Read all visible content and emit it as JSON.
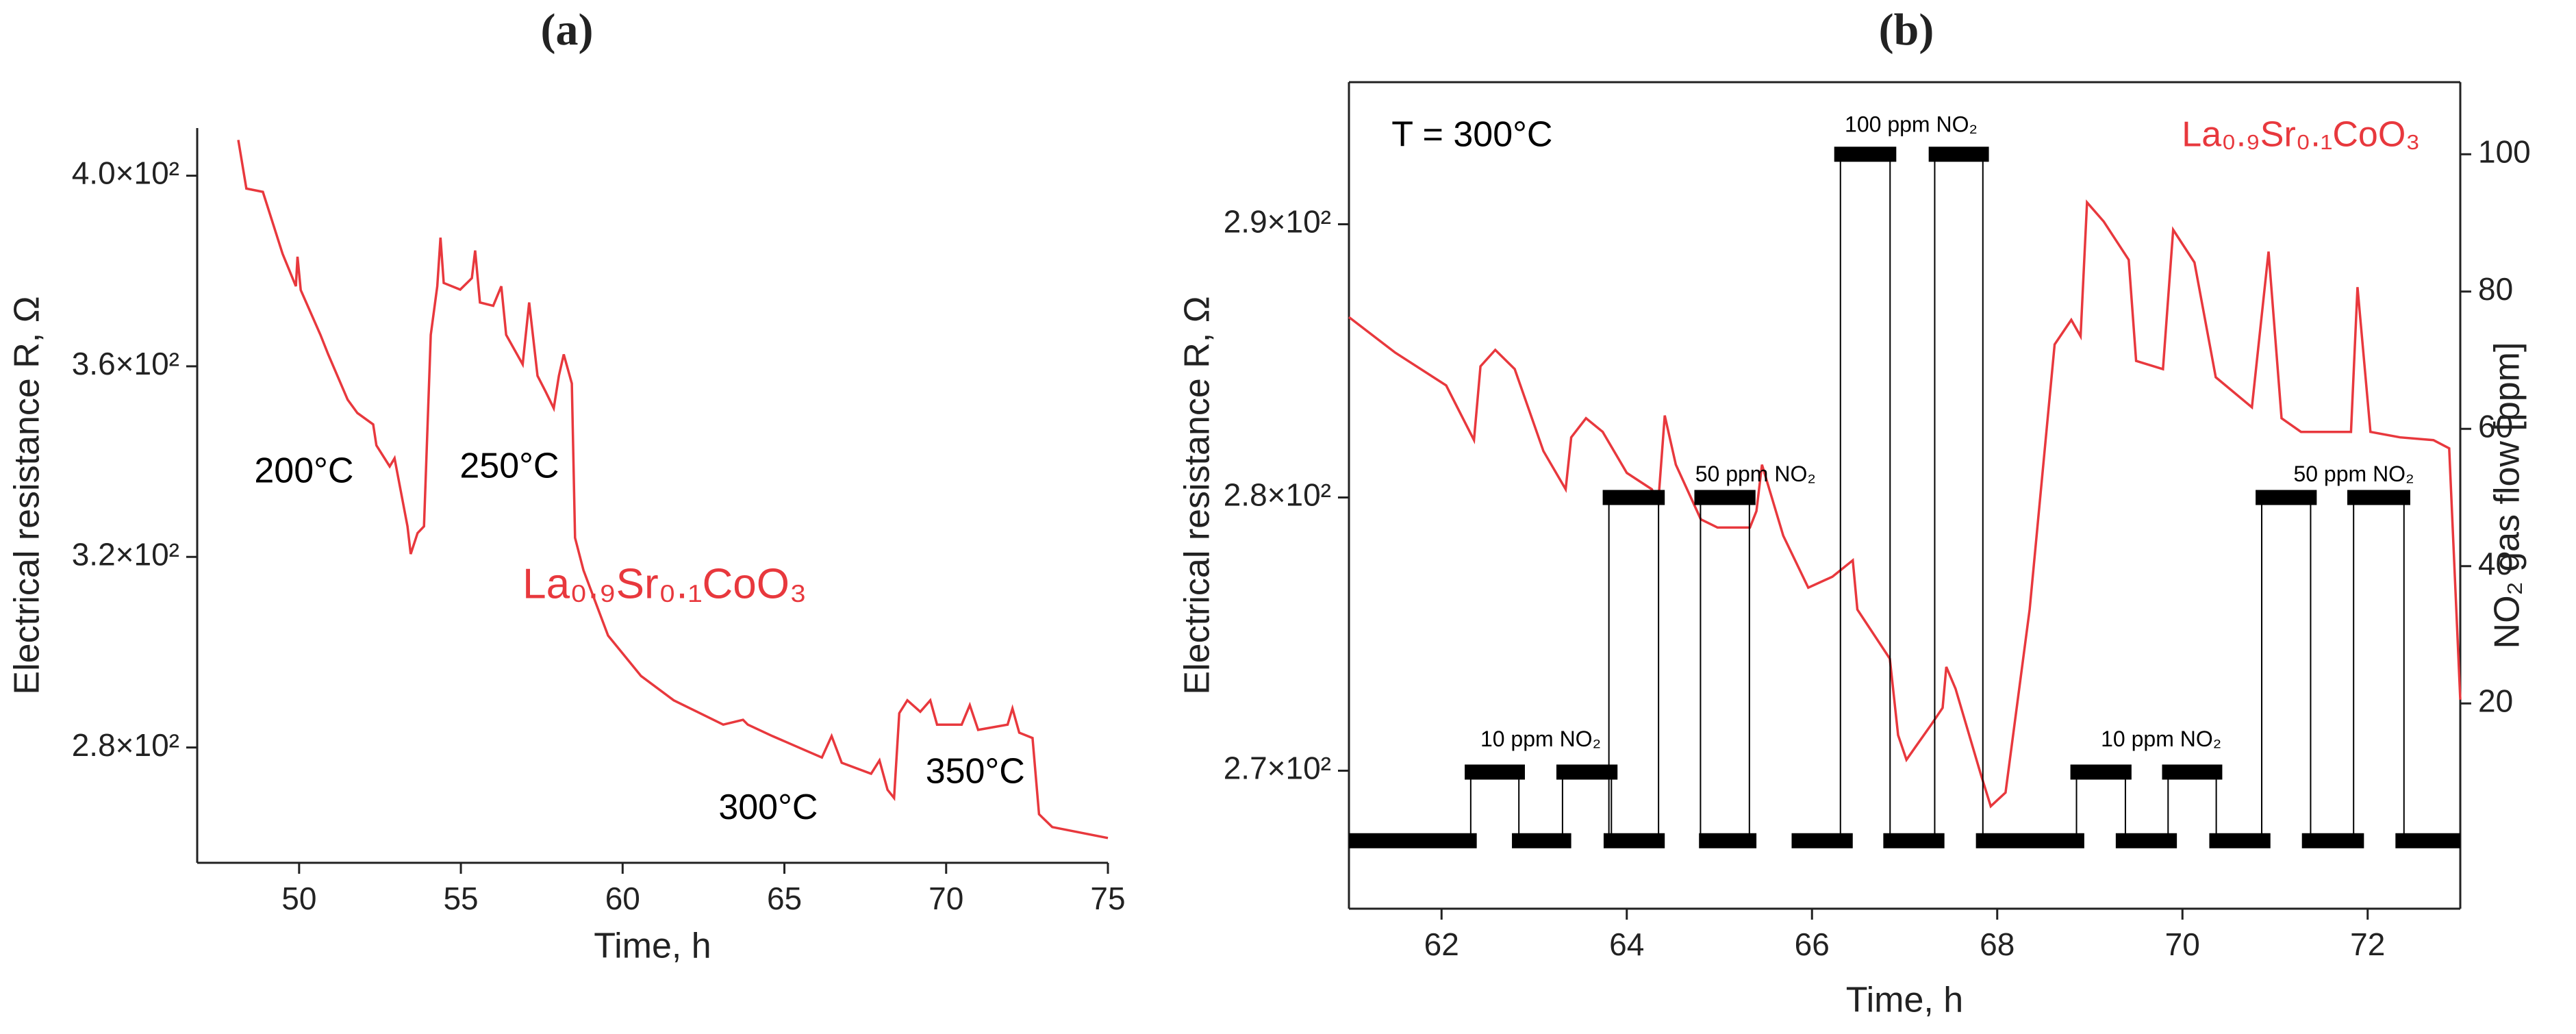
{
  "chart_data": [
    {
      "type": "line",
      "title": "(a)",
      "xlabel": "Time, h",
      "ylabel": "Electrical resistance R, Ω",
      "xlim": [
        46.85,
        75
      ],
      "ylim": [
        255.8,
        410
      ],
      "xticks": [
        50,
        55,
        60,
        65,
        70,
        75
      ],
      "yticks": [
        {
          "value": 280,
          "label": "2.8×10²"
        },
        {
          "value": 320,
          "label": "3.2×10²"
        },
        {
          "value": 360,
          "label": "3.6×10²"
        },
        {
          "value": 400,
          "label": "4.0×10²"
        }
      ],
      "series": [
        {
          "color": "#e8383d",
          "x": [
            48.12,
            48.37,
            48.88,
            49.49,
            49.9,
            49.95,
            50.05,
            50.66,
            50.9,
            51.5,
            51.8,
            52.29,
            52.39,
            52.8,
            52.95,
            53.35,
            53.45,
            53.66,
            53.86,
            54.07,
            54.27,
            54.37,
            54.47,
            54.98,
            55.34,
            55.44,
            55.59,
            56.0,
            56.25,
            56.4,
            56.91,
            57.11,
            57.37,
            57.62,
            57.87,
            58.03,
            58.18,
            58.43,
            58.53,
            58.79,
            59.55,
            60.57,
            61.58,
            63.11,
            63.72,
            63.87,
            64.63,
            65.65,
            66.16,
            66.46,
            66.77,
            67.68,
            67.94,
            68.19,
            68.39,
            68.55,
            68.8,
            69.2,
            69.51,
            69.72,
            70.48,
            70.73,
            70.99,
            71.9,
            72.05,
            72.26,
            72.67,
            72.87,
            73.28,
            75.0
          ],
          "values": [
            407.5,
            397.3,
            396.6,
            383.6,
            376.8,
            383,
            376,
            366.6,
            362.5,
            353,
            350.2,
            347.8,
            343.4,
            339,
            340.7,
            326.4,
            320.6,
            325,
            326.4,
            366.6,
            376.8,
            387,
            377.5,
            376.1,
            378.5,
            384.3,
            373.4,
            372.7,
            376.8,
            366.6,
            360.4,
            373.4,
            358,
            354.7,
            351.2,
            358,
            362.5,
            356.4,
            324,
            317.2,
            303.5,
            295,
            289.9,
            284.8,
            285.8,
            284.8,
            282.4,
            279.4,
            277.9,
            282.4,
            276.8,
            274.5,
            277.3,
            271.1,
            269.4,
            287.2,
            289.9,
            287.5,
            289.9,
            284.8,
            284.8,
            288.9,
            283.7,
            284.8,
            288.2,
            283.1,
            282,
            266,
            263.3,
            261
          ]
        }
      ],
      "annotations": [
        {
          "text": "200°C",
          "x": 50.15,
          "y": 337.6,
          "color": "#000000"
        },
        {
          "text": "250°C",
          "x": 56.5,
          "y": 338.6,
          "color": "#000000"
        },
        {
          "text": "300°C",
          "x": 64.5,
          "y": 267,
          "color": "#000000"
        },
        {
          "text": "350°C",
          "x": 70.9,
          "y": 274.5,
          "color": "#000000"
        },
        {
          "text": "La₀.₉Sr₀.₁CoO₃",
          "x": 61.3,
          "y": 313.7,
          "color": "#e8383d"
        }
      ]
    },
    {
      "type": "line",
      "title": "(b)",
      "xlabel": "Time, h",
      "ylabel": "Electrical resistance R, Ω",
      "y2label": "NO₂ gas flow [ppm]",
      "xlim": [
        61,
        73
      ],
      "ylim": [
        264.95,
        295.2
      ],
      "y2lim": [
        -9.9,
        110.5
      ],
      "xticks": [
        62,
        64,
        66,
        68,
        70,
        72
      ],
      "yticks": [
        {
          "value": 270,
          "label": "2.7×10²"
        },
        {
          "value": 280,
          "label": "2.8×10²"
        },
        {
          "value": 290,
          "label": "2.9×10²"
        }
      ],
      "y2ticks": [
        20,
        40,
        60,
        80,
        100
      ],
      "series": [
        {
          "color": "#e8383d",
          "x": [
            61.0,
            61.5,
            62.05,
            62.35,
            62.42,
            62.58,
            62.79,
            63.1,
            63.34,
            63.4,
            63.56,
            63.74,
            64.0,
            64.27,
            64.34,
            64.41,
            64.53,
            64.8,
            64.98,
            65.33,
            65.4,
            65.46,
            65.69,
            65.96,
            66.22,
            66.44,
            66.49,
            66.84,
            66.93,
            67.02,
            67.29,
            67.41,
            67.45,
            67.55,
            67.82,
            67.93,
            68.09,
            68.35,
            68.62,
            68.8,
            68.9,
            68.97,
            69.15,
            69.42,
            69.5,
            69.79,
            69.9,
            70.13,
            70.36,
            70.75,
            70.93,
            71.07,
            71.28,
            71.82,
            71.89,
            72.03,
            72.35,
            72.71,
            72.88,
            73.0
          ],
          "values": [
            286.6,
            285.3,
            284.1,
            282.1,
            284.8,
            285.4,
            284.7,
            281.7,
            280.3,
            282.2,
            282.9,
            282.4,
            280.9,
            280.3,
            279.8,
            283.0,
            281.2,
            279.2,
            278.9,
            278.9,
            279.5,
            281.2,
            278.6,
            276.7,
            277.1,
            277.7,
            275.9,
            274.1,
            271.3,
            270.4,
            271.7,
            272.3,
            273.8,
            273.0,
            269.9,
            268.7,
            269.2,
            275.9,
            285.6,
            286.5,
            285.9,
            290.8,
            290.1,
            288.7,
            285.0,
            284.7,
            289.8,
            288.6,
            284.4,
            283.3,
            289.0,
            282.9,
            282.4,
            282.4,
            287.7,
            282.4,
            282.2,
            282.1,
            281.8,
            272.6
          ]
        },
        {
          "axis": "y2",
          "color": "#000000",
          "segments": [
            {
              "x": [
                61.0,
                62.38
              ],
              "value": 0
            },
            {
              "x": [
                62.76,
                63.4
              ],
              "value": 0
            },
            {
              "x": [
                63.75,
                64.41
              ],
              "value": 0
            },
            {
              "x": [
                64.78,
                65.4
              ],
              "value": 0
            },
            {
              "x": [
                65.78,
                66.44
              ],
              "value": 0
            },
            {
              "x": [
                66.77,
                67.43
              ],
              "value": 0
            },
            {
              "x": [
                67.77,
                68.94
              ],
              "value": 0
            },
            {
              "x": [
                69.28,
                69.94
              ],
              "value": 0
            },
            {
              "x": [
                70.29,
                70.95
              ],
              "value": 0
            },
            {
              "x": [
                71.29,
                71.96
              ],
              "value": 0
            },
            {
              "x": [
                72.3,
                73.0
              ],
              "value": 0
            },
            {
              "x": [
                62.25,
                62.9
              ],
              "value": 10
            },
            {
              "x": [
                63.24,
                63.9
              ],
              "value": 10
            },
            {
              "x": [
                63.74,
                64.41
              ],
              "value": 50
            },
            {
              "x": [
                64.73,
                65.39
              ],
              "value": 50
            },
            {
              "x": [
                66.24,
                66.91
              ],
              "value": 100
            },
            {
              "x": [
                67.26,
                67.91
              ],
              "value": 100
            },
            {
              "x": [
                68.79,
                69.45
              ],
              "value": 10
            },
            {
              "x": [
                69.78,
                70.43
              ],
              "value": 10
            },
            {
              "x": [
                70.79,
                71.45
              ],
              "value": 50
            },
            {
              "x": [
                71.78,
                72.46
              ],
              "value": 50
            }
          ]
        }
      ],
      "annotations": [
        {
          "text": "T = 300°C",
          "x": 62.33,
          "y": 293.2,
          "color": "#000000",
          "size": "large"
        },
        {
          "text": "La₀.₉Sr₀.₁CoO₃",
          "x": 71.28,
          "y": 293.2,
          "color": "#e8383d",
          "size": "large"
        },
        {
          "text": "10 ppm NO₂",
          "x": 63.07,
          "y": 271.1,
          "color": "#000000"
        },
        {
          "text": "50 ppm NO₂",
          "x": 65.39,
          "y": 280.8,
          "color": "#000000"
        },
        {
          "text": "100 ppm NO₂",
          "x": 67.07,
          "y": 293.6,
          "color": "#000000"
        },
        {
          "text": "10 ppm NO₂",
          "x": 69.77,
          "y": 271.1,
          "color": "#000000"
        },
        {
          "text": "50 ppm NO₂",
          "x": 71.85,
          "y": 280.8,
          "color": "#000000"
        }
      ]
    }
  ]
}
